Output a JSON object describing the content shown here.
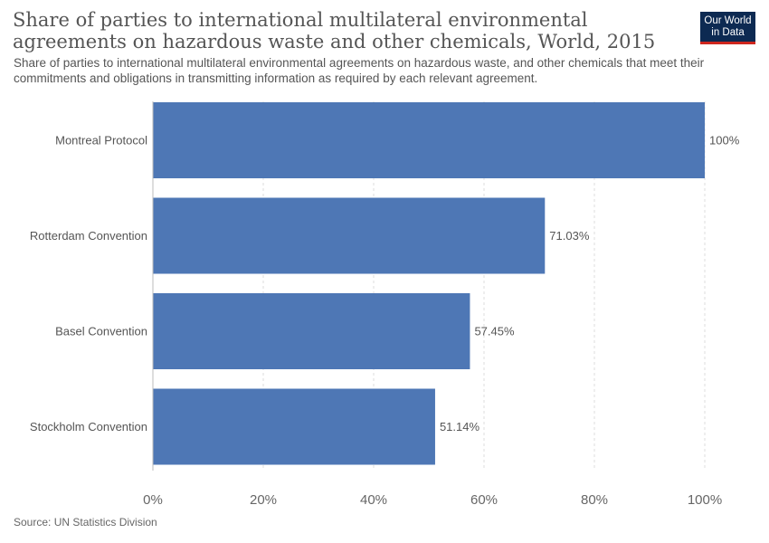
{
  "header": {
    "title": "Share of parties to international multilateral environmental agreements on hazardous waste and other chemicals, World, 2015",
    "subtitle": "Share of parties to international multilateral environmental agreements on hazardous waste, and other chemicals that meet their commitments and obligations in transmitting information as required by each relevant agreement.",
    "logo_line1": "Our World",
    "logo_line2": "in Data"
  },
  "footer": {
    "source": "Source: UN Statistics Division"
  },
  "colors": {
    "bar": "#4e77b5",
    "grid": "#dddddd",
    "label": "#555555",
    "logo_bg": "#0d2a52",
    "logo_accent": "#ce261e"
  },
  "chart_data": {
    "type": "bar",
    "orientation": "horizontal",
    "categories": [
      "Montreal Protocol",
      "Rotterdam Convention",
      "Basel Convention",
      "Stockholm Convention"
    ],
    "values": [
      100,
      71.03,
      57.45,
      51.14
    ],
    "value_labels": [
      "100%",
      "71.03%",
      "57.45%",
      "51.14%"
    ],
    "xlim": [
      0,
      100
    ],
    "x_ticks": [
      0,
      20,
      40,
      60,
      80,
      100
    ],
    "x_tick_labels": [
      "0%",
      "20%",
      "40%",
      "60%",
      "80%",
      "100%"
    ],
    "grid": "vertical dashed"
  }
}
